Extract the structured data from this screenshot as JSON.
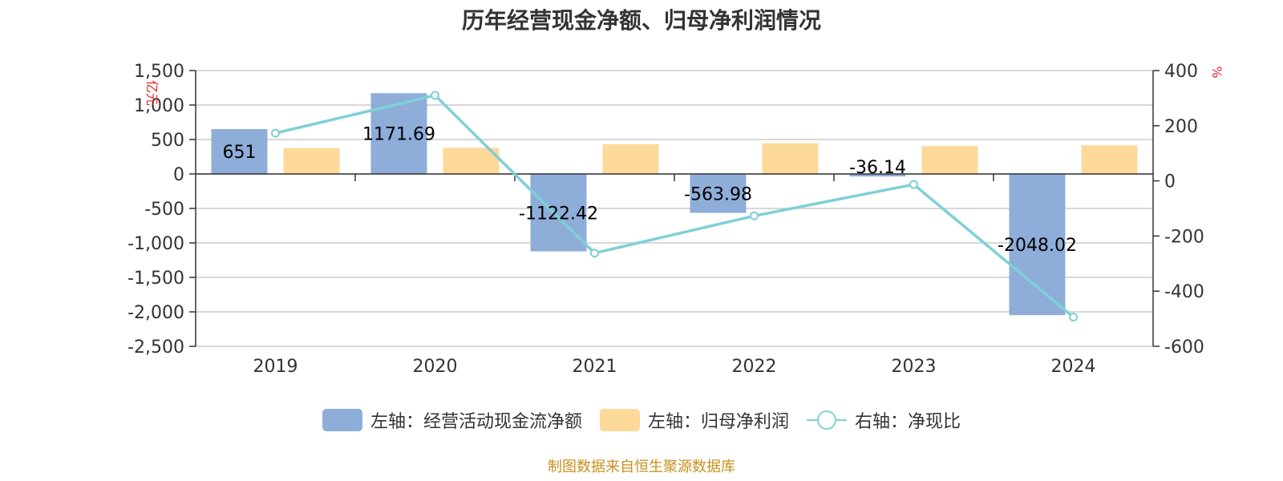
{
  "chart_data": {
    "type": "bar",
    "title": "历年经营现金净额、归母净利润情况",
    "left_unit": "亿元",
    "right_unit": "%",
    "categories": [
      "2019",
      "2020",
      "2021",
      "2022",
      "2023",
      "2024"
    ],
    "left_ticks": [
      "1,500",
      "1,000",
      "500",
      "0",
      "-500",
      "-1,000",
      "-1,500",
      "-2,000",
      "-2,500"
    ],
    "right_ticks": [
      "400",
      "200",
      "0",
      "-200",
      "-400",
      "-600"
    ],
    "ylim_left": [
      -2500,
      1500
    ],
    "ylim_right": [
      -600,
      400
    ],
    "series": [
      {
        "name": "左轴：经营活动现金流净额",
        "type": "bar",
        "axis": "left",
        "color": "#8eadd9",
        "values": [
          651,
          1171.69,
          -1122.42,
          -563.98,
          -36.14,
          -2048.02
        ],
        "labels": [
          "651",
          "1171.69",
          "-1122.42",
          "-563.98",
          "-36.14",
          "-2048.02"
        ]
      },
      {
        "name": "左轴：归母净利润",
        "type": "bar",
        "axis": "left",
        "color": "#fdd99a",
        "values": [
          375,
          380,
          430,
          445,
          405,
          415
        ]
      },
      {
        "name": "右轴：净现比",
        "type": "line",
        "axis": "right",
        "color": "#7fd0d6",
        "values": [
          173,
          310,
          -262,
          -127,
          -13,
          -494
        ]
      }
    ],
    "grid": true,
    "legend_position": "bottom"
  },
  "source": "制图数据来自恒生聚源数据库"
}
